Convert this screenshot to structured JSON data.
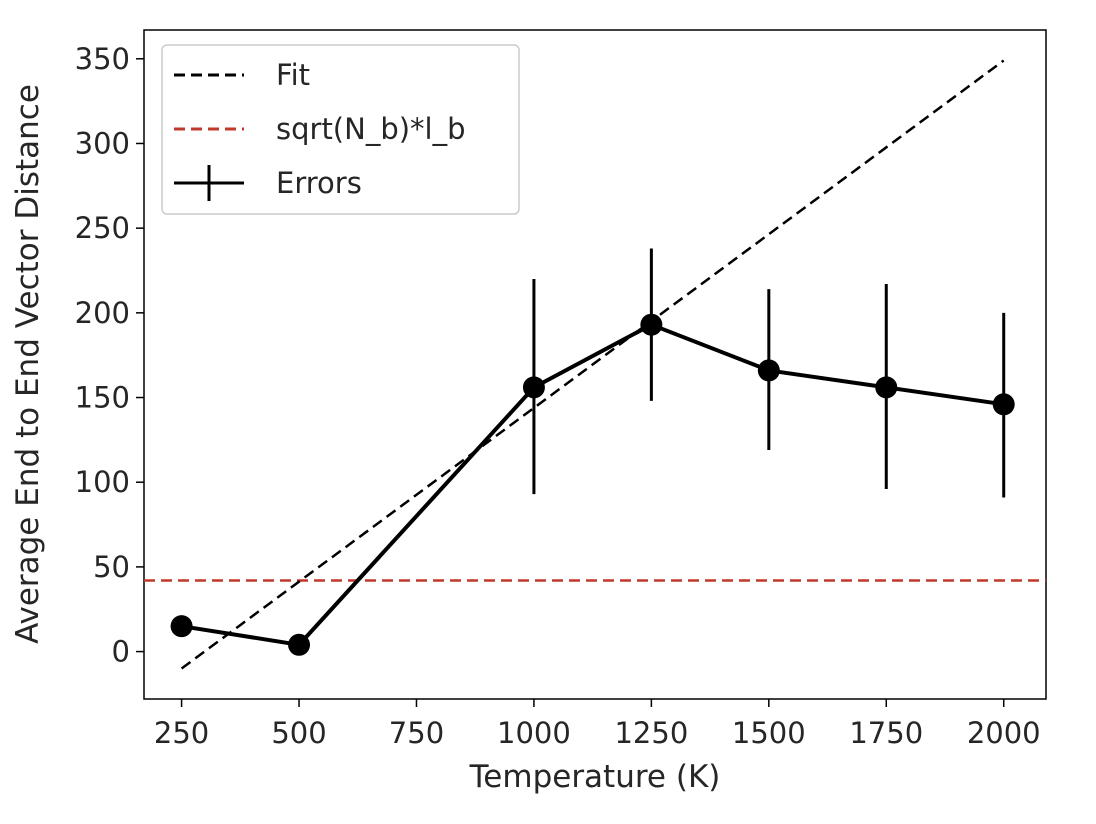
{
  "chart_data": {
    "type": "line",
    "xlabel": "Temperature (K)",
    "ylabel": "Average End to End Vector Distance",
    "xlim": [
      170,
      2090
    ],
    "ylim": [
      -28,
      367
    ],
    "xticks": [
      250,
      500,
      750,
      1000,
      1250,
      1500,
      1750,
      2000
    ],
    "yticks": [
      0,
      50,
      100,
      150,
      200,
      250,
      300,
      350
    ],
    "grid": false,
    "legend_position": "upper-left",
    "series": [
      {
        "name": "Errors",
        "style": "solid-line-with-markers-and-errorbars",
        "color": "#000000",
        "x": [
          250,
          500,
          1000,
          1250,
          1500,
          1750,
          2000
        ],
        "y": [
          15,
          4,
          156,
          193,
          166,
          156,
          146
        ],
        "yerr_low": [
          15,
          4,
          93,
          148,
          119,
          96,
          91
        ],
        "yerr_high": [
          15,
          4,
          220,
          238,
          214,
          217,
          200
        ]
      },
      {
        "name": "Fit",
        "style": "dashed-line",
        "color": "#000000",
        "x": [
          250,
          2000
        ],
        "y": [
          -10,
          349
        ]
      },
      {
        "name": "sqrt(N_b)*l_b",
        "style": "dashed-hline",
        "color": "#c0392b",
        "y": 42
      }
    ],
    "legend": [
      "Fit",
      "sqrt(N_b)*l_b",
      "Errors"
    ]
  }
}
